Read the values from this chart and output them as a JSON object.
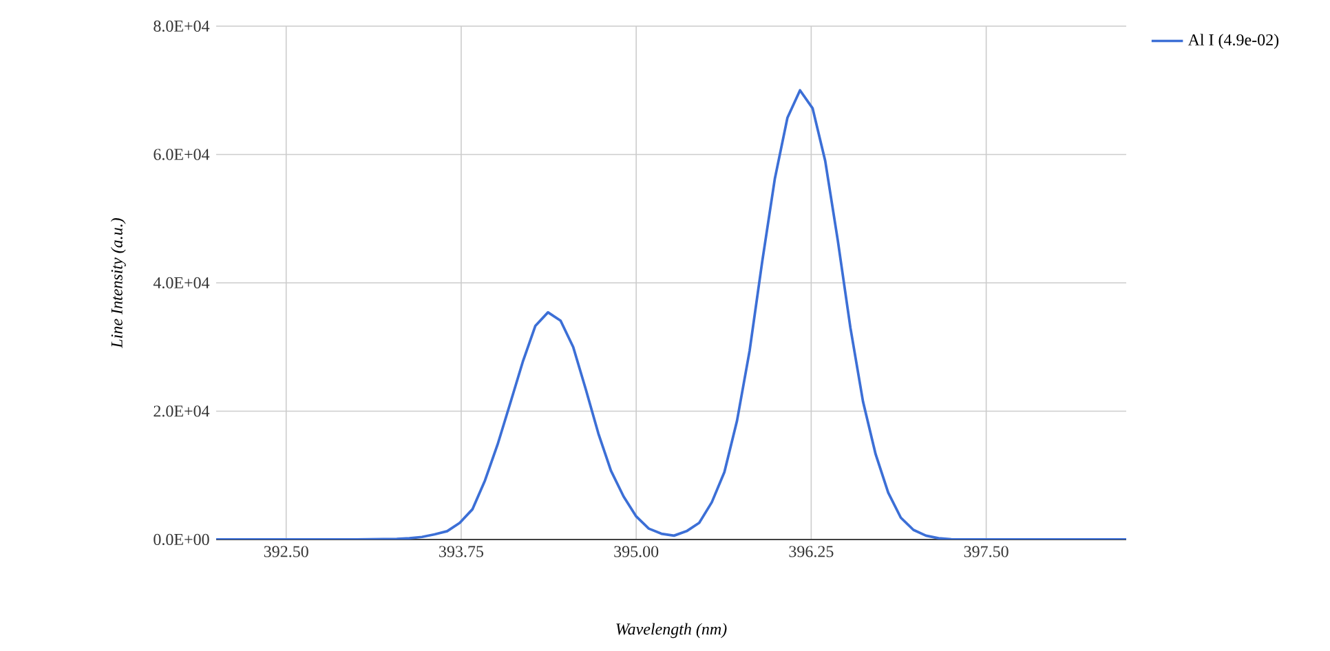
{
  "chart_data": {
    "type": "line",
    "xlabel": "Wavelength (nm)",
    "ylabel": "Line Intensity (a.u.)",
    "series": [
      {
        "name": "Al I (4.9e-02)",
        "color": "#3c6fd6",
        "x": [
          392.0,
          393.0,
          393.29,
          393.38,
          393.47,
          393.56,
          393.65,
          393.74,
          393.83,
          393.92,
          394.01,
          394.1,
          394.19,
          394.28,
          394.37,
          394.46,
          394.55,
          394.64,
          394.73,
          394.82,
          394.91,
          395.0,
          395.09,
          395.18,
          395.27,
          395.36,
          395.45,
          395.54,
          395.63,
          395.72,
          395.81,
          395.9,
          395.99,
          396.08,
          396.17,
          396.26,
          396.35,
          396.44,
          396.53,
          396.62,
          396.71,
          396.8,
          396.89,
          396.98,
          397.07,
          397.16,
          397.25,
          397.34,
          398.5
        ],
        "values": [
          0,
          0,
          100,
          200,
          400,
          800,
          1300,
          2600,
          4700,
          9200,
          14800,
          21200,
          27700,
          33300,
          35400,
          34100,
          30000,
          23400,
          16500,
          10700,
          6700,
          3600,
          1700,
          900,
          600,
          1300,
          2600,
          5800,
          10500,
          18500,
          29400,
          43300,
          56200,
          65700,
          70000,
          67200,
          59000,
          46600,
          33000,
          21500,
          13300,
          7300,
          3400,
          1500,
          600,
          200,
          50,
          0,
          0
        ]
      }
    ],
    "xlim": [
      392.0,
      398.5
    ],
    "xticks": [
      {
        "value": 392.5,
        "label": "392.50"
      },
      {
        "value": 393.75,
        "label": "393.75"
      },
      {
        "value": 395.0,
        "label": "395.00"
      },
      {
        "value": 396.25,
        "label": "396.25"
      },
      {
        "value": 397.5,
        "label": "397.50"
      }
    ],
    "ylim": [
      0,
      80000
    ],
    "yticks": [
      {
        "value": 0,
        "label": "0.0E+00"
      },
      {
        "value": 20000,
        "label": "2.0E+04"
      },
      {
        "value": 40000,
        "label": "4.0E+04"
      },
      {
        "value": 60000,
        "label": "6.0E+04"
      },
      {
        "value": 80000,
        "label": "8.0E+04"
      }
    ],
    "grid": true,
    "legend": "top right",
    "marker": "none",
    "line_style": "solid"
  }
}
